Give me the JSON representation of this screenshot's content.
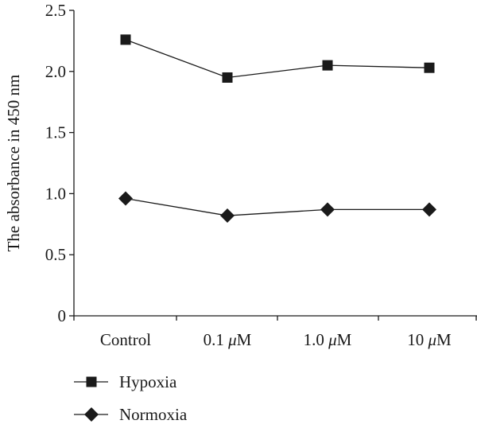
{
  "chart_data": {
    "type": "line",
    "categories": [
      "Control",
      "0.1 μM",
      "1.0 μM",
      "10 μM"
    ],
    "category_parts": [
      {
        "num": "",
        "unit": "",
        "text": "Control"
      },
      {
        "num": "0.1 ",
        "unit": "μ",
        "text": "M"
      },
      {
        "num": "1.0 ",
        "unit": "μ",
        "text": "M"
      },
      {
        "num": "10 ",
        "unit": "μ",
        "text": "M"
      }
    ],
    "series": [
      {
        "name": "Hypoxia",
        "marker": "square",
        "values": [
          2.26,
          1.95,
          2.05,
          2.03
        ]
      },
      {
        "name": "Normoxia",
        "marker": "diamond",
        "values": [
          0.96,
          0.82,
          0.87,
          0.87
        ]
      }
    ],
    "ylabel": "The absorbance in 450 nm",
    "ylim": [
      0,
      2.5
    ],
    "yticks": [
      "0",
      "0.5",
      "1.0",
      "1.5",
      "2.0",
      "2.5"
    ],
    "ytick_values": [
      0,
      0.5,
      1.0,
      1.5,
      2.0,
      2.5
    ],
    "grid": false,
    "legend_placement": "bottom-left",
    "colors": {
      "line": "#1a1a1a",
      "marker": "#1a1a1a"
    }
  }
}
